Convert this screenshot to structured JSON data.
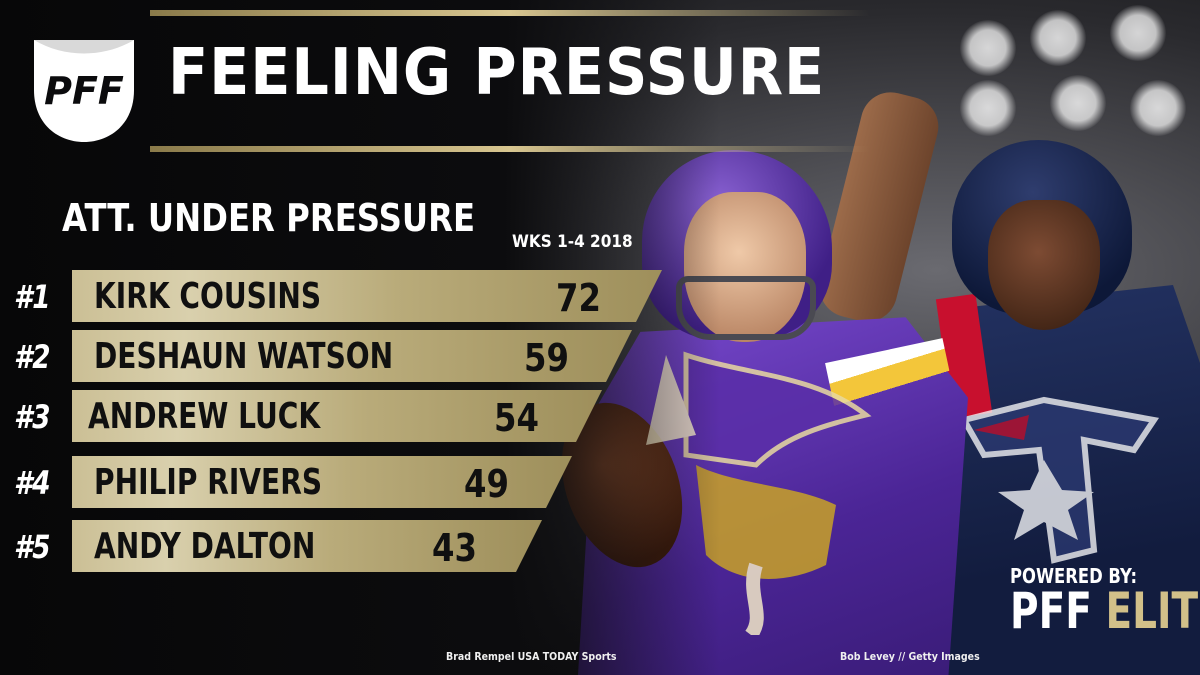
{
  "header": {
    "logo_text": "PFF",
    "title": "FEELING PRESSURE"
  },
  "stat": {
    "subtitle": "ATT. UNDER PRESSURE",
    "period": "WKS 1-4 2018"
  },
  "rankings": [
    {
      "rank": "#1",
      "name": "KIRK COUSINS",
      "value": "72"
    },
    {
      "rank": "#2",
      "name": "DESHAUN WATSON",
      "value": "59"
    },
    {
      "rank": "#3",
      "name": "ANDREW LUCK",
      "value": "54"
    },
    {
      "rank": "#4",
      "name": "PHILIP RIVERS",
      "value": "49"
    },
    {
      "rank": "#5",
      "name": "ANDY DALTON",
      "value": "43"
    }
  ],
  "branding": {
    "powered_by": "POWERED BY:",
    "elite_pff": "PFF",
    "elite_word": "ELITE"
  },
  "credits": {
    "left": "Brad Rempel USA TODAY Sports",
    "right": "Bob Levey // Getty Images"
  },
  "colors": {
    "gold": "#d2c089",
    "background": "#0b0b0d",
    "vikings_purple": "#4b2596",
    "texans_navy": "#121c3e",
    "texans_red": "#c8102e"
  },
  "icons": [
    "pff-football-logo",
    "vikings-logo",
    "texans-logo",
    "stadium-lights"
  ]
}
